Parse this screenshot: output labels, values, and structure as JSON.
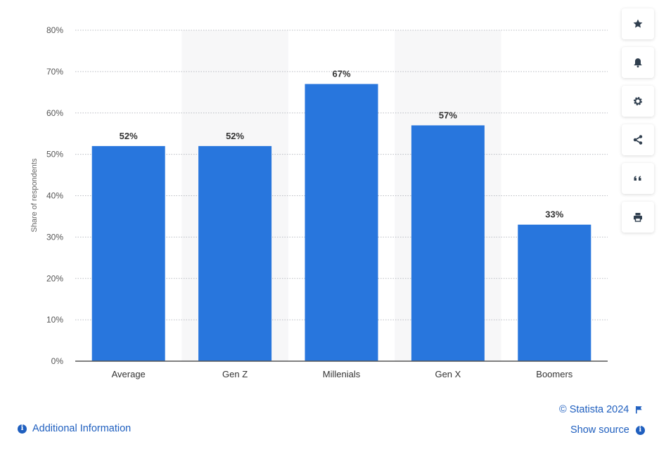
{
  "chart_data": {
    "type": "bar",
    "categories": [
      "Average",
      "Gen Z",
      "Millenials",
      "Gen X",
      "Boomers"
    ],
    "values": [
      52,
      52,
      67,
      57,
      33
    ],
    "value_labels": [
      "52%",
      "52%",
      "67%",
      "57%",
      "33%"
    ],
    "ylabel": "Share of respondents",
    "ylim": [
      0,
      80
    ],
    "yticks": [
      "0%",
      "10%",
      "20%",
      "30%",
      "40%",
      "50%",
      "60%",
      "70%",
      "80%"
    ],
    "grid": true,
    "bar_color": "#2876dd"
  },
  "toolbar": {
    "icons": [
      "star-icon",
      "bell-icon",
      "gear-icon",
      "share-icon",
      "quote-icon",
      "print-icon"
    ]
  },
  "footer": {
    "copyright": "© Statista 2024",
    "show_source": "Show source",
    "additional_info": "Additional Information"
  },
  "colors": {
    "link": "#1f5fbf",
    "bar": "#2876dd"
  }
}
